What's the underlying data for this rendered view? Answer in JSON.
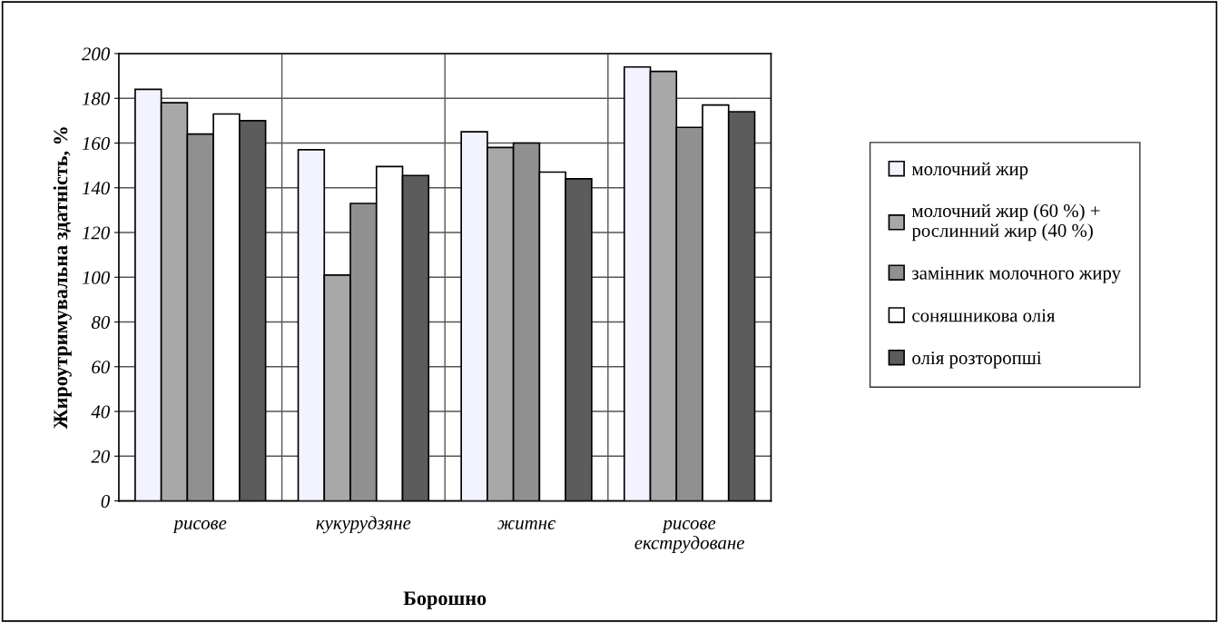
{
  "chart_data": {
    "type": "bar",
    "xlabel": "Борошно",
    "ylabel": "Жироутримувальна здатність, %",
    "categories": [
      "рисове",
      "кукурудзяне",
      "житнє",
      "рисове\nекструдоване"
    ],
    "series": [
      {
        "name": "молочний жир",
        "color": "#f3f3ff",
        "values": [
          184,
          157,
          165,
          194
        ]
      },
      {
        "name": "молочний жир (60 %) +\nрослинний жир (40 %)",
        "color": "#a8a8a8",
        "values": [
          178,
          101,
          158,
          192
        ]
      },
      {
        "name": "замінник молочного жиру",
        "color": "#909090",
        "values": [
          164,
          133,
          160,
          167
        ]
      },
      {
        "name": "соняшникова олія",
        "color": "#ffffff",
        "values": [
          173,
          149.5,
          147,
          177
        ]
      },
      {
        "name": "олія розторопші",
        "color": "#5c5c5c",
        "values": [
          170,
          145.5,
          144,
          174
        ]
      }
    ],
    "ylim": [
      0,
      200
    ],
    "yticks": [
      0,
      20,
      40,
      60,
      80,
      100,
      120,
      140,
      160,
      180,
      200
    ],
    "grid": true,
    "legend": "right"
  }
}
